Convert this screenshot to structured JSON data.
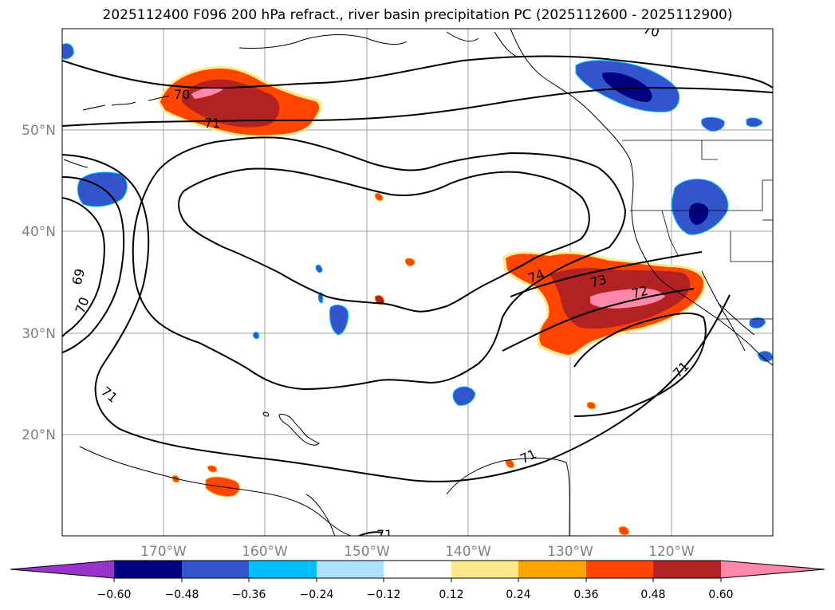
{
  "title": "2025112400 F096 200 hPa refract., river basin precipitation PC (2025112600 - 2025112900)",
  "map": {
    "lat_labels": [
      "50°N",
      "40°N",
      "30°N",
      "20°N"
    ],
    "lon_labels": [
      "170°W",
      "160°W",
      "150°W",
      "140°W",
      "130°W",
      "120°W"
    ],
    "contour_labels": [
      {
        "text": "70",
        "id": "a"
      },
      {
        "text": "71",
        "id": "b"
      },
      {
        "text": "69",
        "id": "c"
      },
      {
        "text": "70",
        "id": "d"
      },
      {
        "text": "71",
        "id": "e"
      },
      {
        "text": "74",
        "id": "f"
      },
      {
        "text": "73",
        "id": "g"
      },
      {
        "text": "72",
        "id": "h"
      },
      {
        "text": "71",
        "id": "i"
      },
      {
        "text": "71",
        "id": "j"
      },
      {
        "text": "71",
        "id": "k"
      },
      {
        "text": "70",
        "id": "l"
      }
    ]
  },
  "colorbar": {
    "colors": [
      "#9933cc",
      "#000080",
      "#3355cc",
      "#00bfff",
      "#aee3ff",
      "#ffffff",
      "#ffe88a",
      "#ffa500",
      "#ff4500",
      "#b22222",
      "#ff88aa"
    ],
    "tick_labels": [
      "−0.60",
      "−0.48",
      "−0.36",
      "−0.24",
      "−0.12",
      "0.12",
      "0.24",
      "0.36",
      "0.48",
      "0.60"
    ]
  }
}
